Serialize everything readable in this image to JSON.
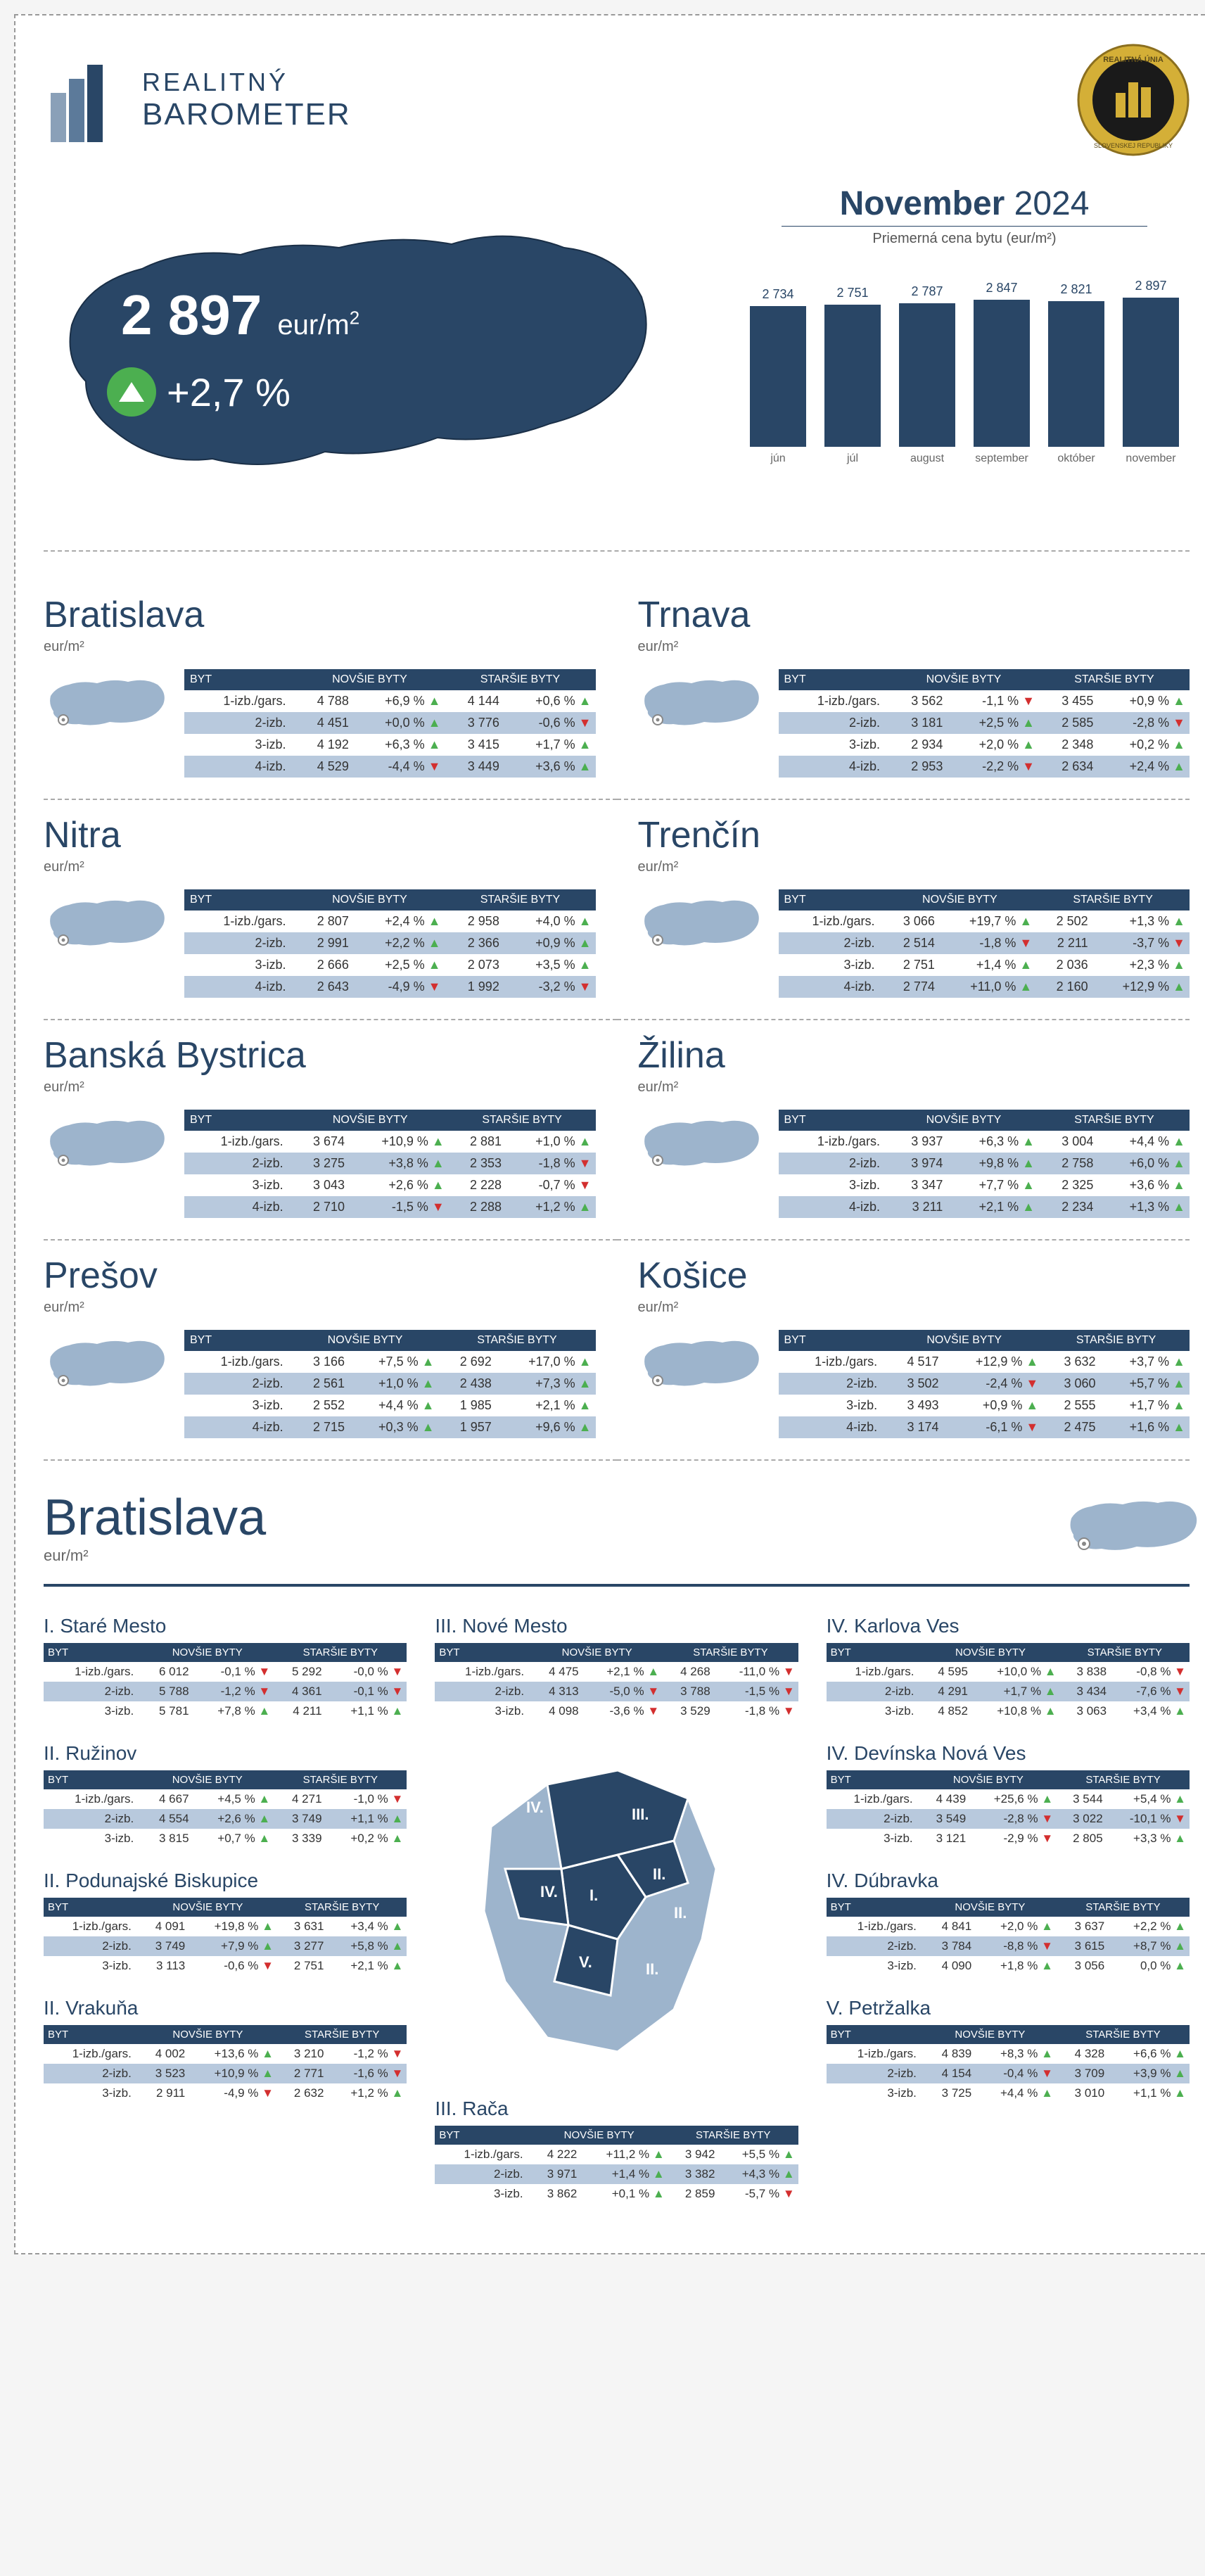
{
  "brand": {
    "line1": "REALITNÝ",
    "line2": "BAROMETER"
  },
  "colors": {
    "primary": "#294666",
    "light_blue": "#9db4cc",
    "alt_row": "#b8c9dd",
    "green": "#4caf50",
    "red": "#d32f2f",
    "gold": "#d4af37",
    "text_muted": "#666"
  },
  "hero": {
    "price": "2 897",
    "unit": "eur/m",
    "sup": "2",
    "change": "+2,7 %",
    "change_dir": "up"
  },
  "period": {
    "month": "November",
    "year": "2024"
  },
  "chart": {
    "subtitle": "Priemerná cena bytu (eur/m²)",
    "max": 3000,
    "bars": [
      {
        "label": "jún",
        "value": 2734
      },
      {
        "label": "júl",
        "value": 2751
      },
      {
        "label": "august",
        "value": 2787
      },
      {
        "label": "september",
        "value": 2847
      },
      {
        "label": "október",
        "value": 2821
      },
      {
        "label": "november",
        "value": 2897
      }
    ]
  },
  "table_headers": {
    "byt": "BYT",
    "nov": "NOVŠIE BYTY",
    "star": "STARŠIE BYTY"
  },
  "row_types": [
    "1-izb./gars.",
    "2-izb.",
    "3-izb.",
    "4-izb."
  ],
  "row_types3": [
    "1-izb./gars.",
    "2-izb.",
    "3-izb."
  ],
  "unit_label": "eur/m²",
  "regions": [
    {
      "name": "Bratislava",
      "rows": [
        {
          "nv": "4 788",
          "np": "+6,9 %",
          "nd": "up",
          "sv": "4 144",
          "sp": "+0,6 %",
          "sd": "up"
        },
        {
          "nv": "4 451",
          "np": "+0,0 %",
          "nd": "up",
          "sv": "3 776",
          "sp": "-0,6 %",
          "sd": "down"
        },
        {
          "nv": "4 192",
          "np": "+6,3 %",
          "nd": "up",
          "sv": "3 415",
          "sp": "+1,7 %",
          "sd": "up"
        },
        {
          "nv": "4 529",
          "np": "-4,4 %",
          "nd": "down",
          "sv": "3 449",
          "sp": "+3,6 %",
          "sd": "up"
        }
      ]
    },
    {
      "name": "Trnava",
      "rows": [
        {
          "nv": "3 562",
          "np": "-1,1 %",
          "nd": "down",
          "sv": "3 455",
          "sp": "+0,9 %",
          "sd": "up"
        },
        {
          "nv": "3 181",
          "np": "+2,5 %",
          "nd": "up",
          "sv": "2 585",
          "sp": "-2,8 %",
          "sd": "down"
        },
        {
          "nv": "2 934",
          "np": "+2,0 %",
          "nd": "up",
          "sv": "2 348",
          "sp": "+0,2 %",
          "sd": "up"
        },
        {
          "nv": "2 953",
          "np": "-2,2 %",
          "nd": "down",
          "sv": "2 634",
          "sp": "+2,4 %",
          "sd": "up"
        }
      ]
    },
    {
      "name": "Nitra",
      "rows": [
        {
          "nv": "2 807",
          "np": "+2,4 %",
          "nd": "up",
          "sv": "2 958",
          "sp": "+4,0 %",
          "sd": "up"
        },
        {
          "nv": "2 991",
          "np": "+2,2 %",
          "nd": "up",
          "sv": "2 366",
          "sp": "+0,9 %",
          "sd": "up"
        },
        {
          "nv": "2 666",
          "np": "+2,5 %",
          "nd": "up",
          "sv": "2 073",
          "sp": "+3,5 %",
          "sd": "up"
        },
        {
          "nv": "2 643",
          "np": "-4,9 %",
          "nd": "down",
          "sv": "1 992",
          "sp": "-3,2 %",
          "sd": "down"
        }
      ]
    },
    {
      "name": "Trenčín",
      "rows": [
        {
          "nv": "3 066",
          "np": "+19,7 %",
          "nd": "up",
          "sv": "2 502",
          "sp": "+1,3 %",
          "sd": "up"
        },
        {
          "nv": "2 514",
          "np": "-1,8 %",
          "nd": "down",
          "sv": "2 211",
          "sp": "-3,7 %",
          "sd": "down"
        },
        {
          "nv": "2 751",
          "np": "+1,4 %",
          "nd": "up",
          "sv": "2 036",
          "sp": "+2,3 %",
          "sd": "up"
        },
        {
          "nv": "2 774",
          "np": "+11,0 %",
          "nd": "up",
          "sv": "2 160",
          "sp": "+12,9 %",
          "sd": "up"
        }
      ]
    },
    {
      "name": "Banská Bystrica",
      "rows": [
        {
          "nv": "3 674",
          "np": "+10,9 %",
          "nd": "up",
          "sv": "2 881",
          "sp": "+1,0 %",
          "sd": "up"
        },
        {
          "nv": "3 275",
          "np": "+3,8 %",
          "nd": "up",
          "sv": "2 353",
          "sp": "-1,8 %",
          "sd": "down"
        },
        {
          "nv": "3 043",
          "np": "+2,6 %",
          "nd": "up",
          "sv": "2 228",
          "sp": "-0,7 %",
          "sd": "down"
        },
        {
          "nv": "2 710",
          "np": "-1,5 %",
          "nd": "down",
          "sv": "2 288",
          "sp": "+1,2 %",
          "sd": "up"
        }
      ]
    },
    {
      "name": "Žilina",
      "rows": [
        {
          "nv": "3 937",
          "np": "+6,3 %",
          "nd": "up",
          "sv": "3 004",
          "sp": "+4,4 %",
          "sd": "up"
        },
        {
          "nv": "3 974",
          "np": "+9,8 %",
          "nd": "up",
          "sv": "2 758",
          "sp": "+6,0 %",
          "sd": "up"
        },
        {
          "nv": "3 347",
          "np": "+7,7 %",
          "nd": "up",
          "sv": "2 325",
          "sp": "+3,6 %",
          "sd": "up"
        },
        {
          "nv": "3 211",
          "np": "+2,1 %",
          "nd": "up",
          "sv": "2 234",
          "sp": "+1,3 %",
          "sd": "up"
        }
      ]
    },
    {
      "name": "Prešov",
      "rows": [
        {
          "nv": "3 166",
          "np": "+7,5 %",
          "nd": "up",
          "sv": "2 692",
          "sp": "+17,0 %",
          "sd": "up"
        },
        {
          "nv": "2 561",
          "np": "+1,0 %",
          "nd": "up",
          "sv": "2 438",
          "sp": "+7,3 %",
          "sd": "up"
        },
        {
          "nv": "2 552",
          "np": "+4,4 %",
          "nd": "up",
          "sv": "1 985",
          "sp": "+2,1 %",
          "sd": "up"
        },
        {
          "nv": "2 715",
          "np": "+0,3 %",
          "nd": "up",
          "sv": "1 957",
          "sp": "+9,6 %",
          "sd": "up"
        }
      ]
    },
    {
      "name": "Košice",
      "rows": [
        {
          "nv": "4 517",
          "np": "+12,9 %",
          "nd": "up",
          "sv": "3 632",
          "sp": "+3,7 %",
          "sd": "up"
        },
        {
          "nv": "3 502",
          "np": "-2,4 %",
          "nd": "down",
          "sv": "3 060",
          "sp": "+5,7 %",
          "sd": "up"
        },
        {
          "nv": "3 493",
          "np": "+0,9 %",
          "nd": "up",
          "sv": "2 555",
          "sp": "+1,7 %",
          "sd": "up"
        },
        {
          "nv": "3 174",
          "np": "-6,1 %",
          "nd": "down",
          "sv": "2 475",
          "sp": "+1,6 %",
          "sd": "up"
        }
      ]
    }
  ],
  "bratislava": {
    "title": "Bratislava",
    "columns": [
      [
        {
          "name": "I. Staré Mesto",
          "rows": [
            {
              "nv": "6 012",
              "np": "-0,1 %",
              "nd": "down",
              "sv": "5 292",
              "sp": "-0,0 %",
              "sd": "down"
            },
            {
              "nv": "5 788",
              "np": "-1,2 %",
              "nd": "down",
              "sv": "4 361",
              "sp": "-0,1 %",
              "sd": "down"
            },
            {
              "nv": "5 781",
              "np": "+7,8 %",
              "nd": "up",
              "sv": "4 211",
              "sp": "+1,1 %",
              "sd": "up"
            }
          ]
        },
        {
          "name": "II. Ružinov",
          "rows": [
            {
              "nv": "4 667",
              "np": "+4,5 %",
              "nd": "up",
              "sv": "4 271",
              "sp": "-1,0 %",
              "sd": "down"
            },
            {
              "nv": "4 554",
              "np": "+2,6 %",
              "nd": "up",
              "sv": "3 749",
              "sp": "+1,1 %",
              "sd": "up"
            },
            {
              "nv": "3 815",
              "np": "+0,7 %",
              "nd": "up",
              "sv": "3 339",
              "sp": "+0,2 %",
              "sd": "up"
            }
          ]
        },
        {
          "name": "II. Podunajské Biskupice",
          "rows": [
            {
              "nv": "4 091",
              "np": "+19,8 %",
              "nd": "up",
              "sv": "3 631",
              "sp": "+3,4 %",
              "sd": "up"
            },
            {
              "nv": "3 749",
              "np": "+7,9 %",
              "nd": "up",
              "sv": "3 277",
              "sp": "+5,8 %",
              "sd": "up"
            },
            {
              "nv": "3 113",
              "np": "-0,6 %",
              "nd": "down",
              "sv": "2 751",
              "sp": "+2,1 %",
              "sd": "up"
            }
          ]
        },
        {
          "name": "II. Vrakuňa",
          "rows": [
            {
              "nv": "4 002",
              "np": "+13,6 %",
              "nd": "up",
              "sv": "3 210",
              "sp": "-1,2 %",
              "sd": "down"
            },
            {
              "nv": "3 523",
              "np": "+10,9 %",
              "nd": "up",
              "sv": "2 771",
              "sp": "-1,6 %",
              "sd": "down"
            },
            {
              "nv": "2 911",
              "np": "-4,9 %",
              "nd": "down",
              "sv": "2 632",
              "sp": "+1,2 %",
              "sd": "up"
            }
          ]
        }
      ],
      [
        {
          "name": "III. Nové Mesto",
          "rows": [
            {
              "nv": "4 475",
              "np": "+2,1 %",
              "nd": "up",
              "sv": "4 268",
              "sp": "-11,0 %",
              "sd": "down"
            },
            {
              "nv": "4 313",
              "np": "-5,0 %",
              "nd": "down",
              "sv": "3 788",
              "sp": "-1,5 %",
              "sd": "down"
            },
            {
              "nv": "4 098",
              "np": "-3,6 %",
              "nd": "down",
              "sv": "3 529",
              "sp": "-1,8 %",
              "sd": "down"
            }
          ]
        },
        {
          "name": "III. Rača",
          "rows": [
            {
              "nv": "4 222",
              "np": "+11,2 %",
              "nd": "up",
              "sv": "3 942",
              "sp": "+5,5 %",
              "sd": "up"
            },
            {
              "nv": "3 971",
              "np": "+1,4 %",
              "nd": "up",
              "sv": "3 382",
              "sp": "+4,3 %",
              "sd": "up"
            },
            {
              "nv": "3 862",
              "np": "+0,1 %",
              "nd": "up",
              "sv": "2 859",
              "sp": "-5,7 %",
              "sd": "down"
            }
          ]
        }
      ],
      [
        {
          "name": "IV. Karlova Ves",
          "rows": [
            {
              "nv": "4 595",
              "np": "+10,0 %",
              "nd": "up",
              "sv": "3 838",
              "sp": "-0,8 %",
              "sd": "down"
            },
            {
              "nv": "4 291",
              "np": "+1,7 %",
              "nd": "up",
              "sv": "3 434",
              "sp": "-7,6 %",
              "sd": "down"
            },
            {
              "nv": "4 852",
              "np": "+10,8 %",
              "nd": "up",
              "sv": "3 063",
              "sp": "+3,4 %",
              "sd": "up"
            }
          ]
        },
        {
          "name": "IV. Devínska Nová Ves",
          "rows": [
            {
              "nv": "4 439",
              "np": "+25,6 %",
              "nd": "up",
              "sv": "3 544",
              "sp": "+5,4 %",
              "sd": "up"
            },
            {
              "nv": "3 549",
              "np": "-2,8 %",
              "nd": "down",
              "sv": "3 022",
              "sp": "-10,1 %",
              "sd": "down"
            },
            {
              "nv": "3 121",
              "np": "-2,9 %",
              "nd": "down",
              "sv": "2 805",
              "sp": "+3,3 %",
              "sd": "up"
            }
          ]
        },
        {
          "name": "IV. Dúbravka",
          "rows": [
            {
              "nv": "4 841",
              "np": "+2,0 %",
              "nd": "up",
              "sv": "3 637",
              "sp": "+2,2 %",
              "sd": "up"
            },
            {
              "nv": "3 784",
              "np": "-8,8 %",
              "nd": "down",
              "sv": "3 615",
              "sp": "+8,7 %",
              "sd": "up"
            },
            {
              "nv": "4 090",
              "np": "+1,8 %",
              "nd": "up",
              "sv": "3 056",
              "sp": "0,0 %",
              "sd": "up"
            }
          ]
        },
        {
          "name": "V. Petržalka",
          "rows": [
            {
              "nv": "4 839",
              "np": "+8,3 %",
              "nd": "up",
              "sv": "4 328",
              "sp": "+6,6 %",
              "sd": "up"
            },
            {
              "nv": "4 154",
              "np": "-0,4 %",
              "nd": "down",
              "sv": "3 709",
              "sp": "+3,9 %",
              "sd": "up"
            },
            {
              "nv": "3 725",
              "np": "+4,4 %",
              "nd": "up",
              "sv": "3 010",
              "sp": "+1,1 %",
              "sd": "up"
            }
          ]
        }
      ]
    ]
  }
}
